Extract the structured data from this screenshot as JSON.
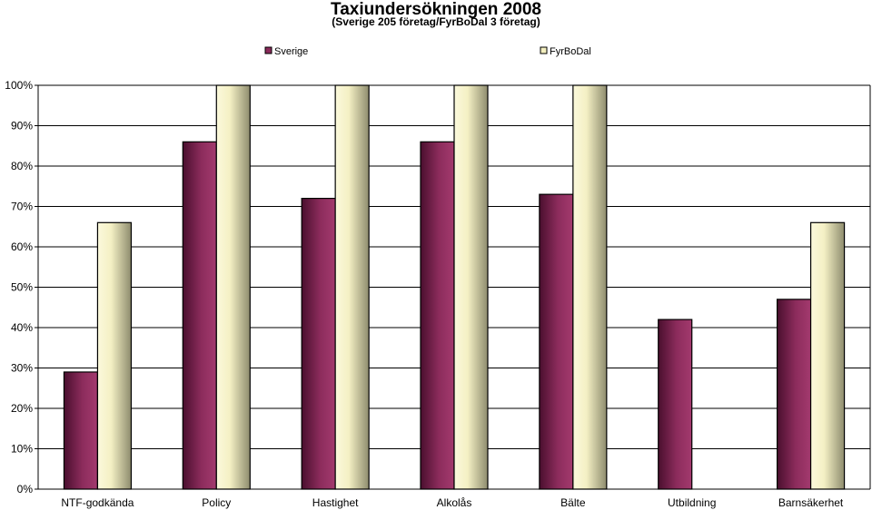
{
  "chart_data": {
    "type": "bar",
    "title": "Taxiundersökningen 2008",
    "subtitle": "(Sverige 205 företag/FyrBoDal 3 företag)",
    "categories": [
      "NTF-godkända",
      "Policy",
      "Hastighet",
      "Alkolås",
      "Bälte",
      "Utbildning",
      "Barnsäkerhet"
    ],
    "series": [
      {
        "name": "Sverige",
        "values": [
          29,
          86,
          72,
          86,
          73,
          42,
          47
        ],
        "color": "#8a2a5a"
      },
      {
        "name": "FyrBoDal",
        "values": [
          66,
          100,
          100,
          100,
          100,
          null,
          66
        ],
        "color": "#f3efbf"
      }
    ],
    "yticks": [
      0,
      10,
      20,
      30,
      40,
      50,
      60,
      70,
      80,
      90,
      100
    ],
    "ytick_suffix": "%",
    "ylim": [
      0,
      100
    ],
    "grid": true,
    "legend_position": "top"
  }
}
